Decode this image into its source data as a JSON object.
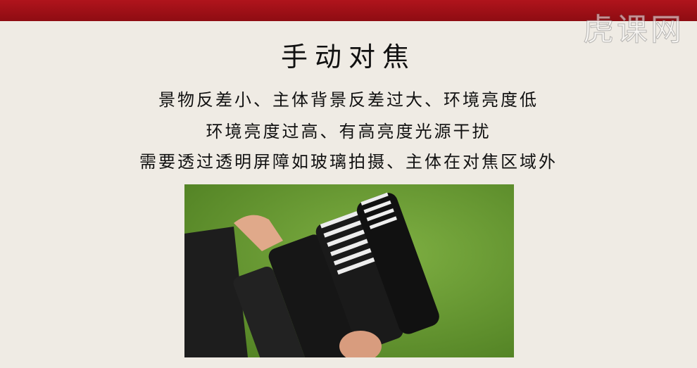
{
  "watermark": "虎课网",
  "title": "手动对焦",
  "lines": [
    "景物反差小、主体背景反差过大、环境亮度低",
    "环境亮度过高、有高亮度光源干扰",
    "需要透过透明屏障如玻璃拍摄、主体在对焦区域外"
  ]
}
